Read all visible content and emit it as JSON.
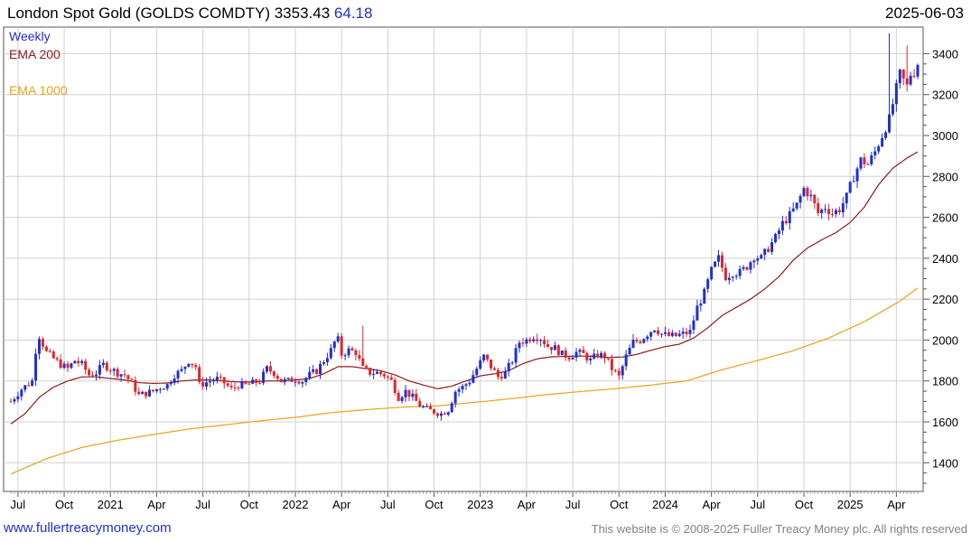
{
  "header": {
    "title": "London Spot Gold (GOLDS COMDTY) 3353.43",
    "change": "64.18",
    "date": "2025-06-03"
  },
  "footer": {
    "site": "www.fullertreacymoney.com",
    "copyright": "This website is © 2008-2025 Fuller Treacy Money plc. All rights reserved"
  },
  "colors": {
    "up": "#1f2fd0",
    "down": "#e0242b",
    "ema200": "#8b1a1a",
    "ema1000": "#e8a317",
    "grid": "#d0d0d0"
  },
  "chart_data": {
    "type": "candlestick",
    "frequency": "Weekly",
    "legend": [
      "Weekly",
      "EMA 200",
      "EMA 1000"
    ],
    "ylim": [
      1260,
      3530
    ],
    "yticks": [
      1400,
      1600,
      1800,
      2000,
      2200,
      2400,
      2600,
      2800,
      3000,
      3200,
      3400
    ],
    "xticks": [
      "Jul",
      "Oct",
      "2021",
      "Apr",
      "Jul",
      "Oct",
      "2022",
      "Apr",
      "Jul",
      "Oct",
      "2023",
      "Apr",
      "Jul",
      "Oct",
      "2024",
      "Apr",
      "Jul",
      "Oct",
      "2025",
      "Apr"
    ],
    "x_range_weeks": [
      0,
      255
    ],
    "xtick_weeks": [
      2,
      15,
      28,
      41,
      54,
      67,
      80,
      93,
      106,
      119,
      132,
      145,
      158,
      171,
      184,
      197,
      210,
      223,
      236,
      249
    ],
    "close_anchors": [
      [
        0,
        1700
      ],
      [
        3,
        1760
      ],
      [
        6,
        1800
      ],
      [
        7,
        1950
      ],
      [
        8,
        2020
      ],
      [
        10,
        1940
      ],
      [
        12,
        1910
      ],
      [
        14,
        1880
      ],
      [
        16,
        1860
      ],
      [
        18,
        1900
      ],
      [
        20,
        1880
      ],
      [
        22,
        1830
      ],
      [
        24,
        1840
      ],
      [
        26,
        1880
      ],
      [
        28,
        1860
      ],
      [
        30,
        1840
      ],
      [
        32,
        1830
      ],
      [
        34,
        1790
      ],
      [
        36,
        1730
      ],
      [
        38,
        1740
      ],
      [
        40,
        1750
      ],
      [
        42,
        1770
      ],
      [
        44,
        1780
      ],
      [
        46,
        1830
      ],
      [
        48,
        1850
      ],
      [
        50,
        1900
      ],
      [
        52,
        1870
      ],
      [
        53,
        1780
      ],
      [
        56,
        1800
      ],
      [
        58,
        1810
      ],
      [
        60,
        1790
      ],
      [
        62,
        1760
      ],
      [
        64,
        1780
      ],
      [
        66,
        1780
      ],
      [
        68,
        1790
      ],
      [
        70,
        1800
      ],
      [
        72,
        1860
      ],
      [
        74,
        1840
      ],
      [
        76,
        1800
      ],
      [
        78,
        1800
      ],
      [
        80,
        1810
      ],
      [
        82,
        1800
      ],
      [
        84,
        1830
      ],
      [
        86,
        1850
      ],
      [
        88,
        1900
      ],
      [
        90,
        1950
      ],
      [
        91,
        1990
      ],
      [
        92,
        2000
      ],
      [
        93,
        1930
      ],
      [
        95,
        1950
      ],
      [
        97,
        1940
      ],
      [
        99,
        1860
      ],
      [
        101,
        1840
      ],
      [
        103,
        1840
      ],
      [
        105,
        1830
      ],
      [
        107,
        1800
      ],
      [
        109,
        1720
      ],
      [
        111,
        1750
      ],
      [
        113,
        1720
      ],
      [
        115,
        1680
      ],
      [
        117,
        1660
      ],
      [
        119,
        1650
      ],
      [
        121,
        1640
      ],
      [
        123,
        1660
      ],
      [
        125,
        1750
      ],
      [
        127,
        1770
      ],
      [
        129,
        1800
      ],
      [
        131,
        1860
      ],
      [
        133,
        1920
      ],
      [
        135,
        1870
      ],
      [
        137,
        1820
      ],
      [
        139,
        1840
      ],
      [
        141,
        1900
      ],
      [
        143,
        1990
      ],
      [
        145,
        2000
      ],
      [
        147,
        2020
      ],
      [
        149,
        2010
      ],
      [
        151,
        1970
      ],
      [
        153,
        1960
      ],
      [
        155,
        1930
      ],
      [
        157,
        1920
      ],
      [
        159,
        1940
      ],
      [
        161,
        1930
      ],
      [
        163,
        1900
      ],
      [
        165,
        1930
      ],
      [
        167,
        1920
      ],
      [
        169,
        1860
      ],
      [
        171,
        1820
      ],
      [
        173,
        1920
      ],
      [
        175,
        1990
      ],
      [
        177,
        2000
      ],
      [
        179,
        2030
      ],
      [
        181,
        2060
      ],
      [
        183,
        2030
      ],
      [
        185,
        2020
      ],
      [
        187,
        2020
      ],
      [
        189,
        2030
      ],
      [
        191,
        2040
      ],
      [
        193,
        2160
      ],
      [
        195,
        2230
      ],
      [
        197,
        2340
      ],
      [
        199,
        2400
      ],
      [
        201,
        2310
      ],
      [
        203,
        2330
      ],
      [
        205,
        2330
      ],
      [
        207,
        2360
      ],
      [
        209,
        2410
      ],
      [
        211,
        2400
      ],
      [
        213,
        2450
      ],
      [
        215,
        2500
      ],
      [
        217,
        2570
      ],
      [
        219,
        2610
      ],
      [
        221,
        2660
      ],
      [
        223,
        2740
      ],
      [
        225,
        2700
      ],
      [
        227,
        2620
      ],
      [
        229,
        2650
      ],
      [
        231,
        2620
      ],
      [
        233,
        2640
      ],
      [
        235,
        2700
      ],
      [
        237,
        2800
      ],
      [
        239,
        2880
      ],
      [
        241,
        2860
      ],
      [
        243,
        2920
      ],
      [
        245,
        3000
      ],
      [
        247,
        3080
      ],
      [
        249,
        3230
      ],
      [
        250,
        3300
      ],
      [
        251,
        3270
      ],
      [
        252,
        3240
      ],
      [
        253,
        3300
      ],
      [
        254,
        3310
      ],
      [
        255,
        3353
      ]
    ],
    "ema200_anchors": [
      [
        0,
        1590
      ],
      [
        4,
        1640
      ],
      [
        8,
        1720
      ],
      [
        12,
        1770
      ],
      [
        16,
        1800
      ],
      [
        20,
        1820
      ],
      [
        24,
        1820
      ],
      [
        28,
        1812
      ],
      [
        32,
        1805
      ],
      [
        36,
        1792
      ],
      [
        40,
        1788
      ],
      [
        44,
        1790
      ],
      [
        48,
        1800
      ],
      [
        52,
        1805
      ],
      [
        56,
        1805
      ],
      [
        60,
        1800
      ],
      [
        64,
        1795
      ],
      [
        68,
        1795
      ],
      [
        72,
        1800
      ],
      [
        76,
        1800
      ],
      [
        80,
        1805
      ],
      [
        84,
        1812
      ],
      [
        88,
        1835
      ],
      [
        92,
        1870
      ],
      [
        96,
        1870
      ],
      [
        100,
        1860
      ],
      [
        104,
        1850
      ],
      [
        108,
        1830
      ],
      [
        112,
        1800
      ],
      [
        116,
        1780
      ],
      [
        120,
        1762
      ],
      [
        124,
        1775
      ],
      [
        128,
        1800
      ],
      [
        132,
        1825
      ],
      [
        136,
        1835
      ],
      [
        140,
        1850
      ],
      [
        144,
        1885
      ],
      [
        148,
        1908
      ],
      [
        152,
        1918
      ],
      [
        156,
        1920
      ],
      [
        160,
        1922
      ],
      [
        164,
        1920
      ],
      [
        168,
        1915
      ],
      [
        172,
        1917
      ],
      [
        176,
        1930
      ],
      [
        180,
        1950
      ],
      [
        184,
        1968
      ],
      [
        188,
        1980
      ],
      [
        192,
        2010
      ],
      [
        196,
        2060
      ],
      [
        200,
        2120
      ],
      [
        204,
        2160
      ],
      [
        208,
        2200
      ],
      [
        212,
        2250
      ],
      [
        216,
        2310
      ],
      [
        220,
        2390
      ],
      [
        224,
        2450
      ],
      [
        228,
        2490
      ],
      [
        232,
        2525
      ],
      [
        236,
        2575
      ],
      [
        240,
        2650
      ],
      [
        244,
        2760
      ],
      [
        248,
        2840
      ],
      [
        252,
        2890
      ],
      [
        255,
        2920
      ]
    ],
    "ema1000_anchors": [
      [
        0,
        1345
      ],
      [
        10,
        1420
      ],
      [
        20,
        1475
      ],
      [
        30,
        1510
      ],
      [
        40,
        1538
      ],
      [
        50,
        1565
      ],
      [
        60,
        1585
      ],
      [
        70,
        1605
      ],
      [
        80,
        1622
      ],
      [
        90,
        1645
      ],
      [
        100,
        1660
      ],
      [
        110,
        1672
      ],
      [
        120,
        1678
      ],
      [
        130,
        1695
      ],
      [
        140,
        1712
      ],
      [
        150,
        1732
      ],
      [
        160,
        1748
      ],
      [
        170,
        1762
      ],
      [
        180,
        1780
      ],
      [
        190,
        1800
      ],
      [
        200,
        1855
      ],
      [
        210,
        1900
      ],
      [
        220,
        1948
      ],
      [
        230,
        2010
      ],
      [
        240,
        2090
      ],
      [
        250,
        2190
      ],
      [
        255,
        2255
      ]
    ],
    "notable_highs": [
      [
        99,
        2070
      ],
      [
        247,
        3500
      ],
      [
        252,
        3440
      ]
    ]
  }
}
